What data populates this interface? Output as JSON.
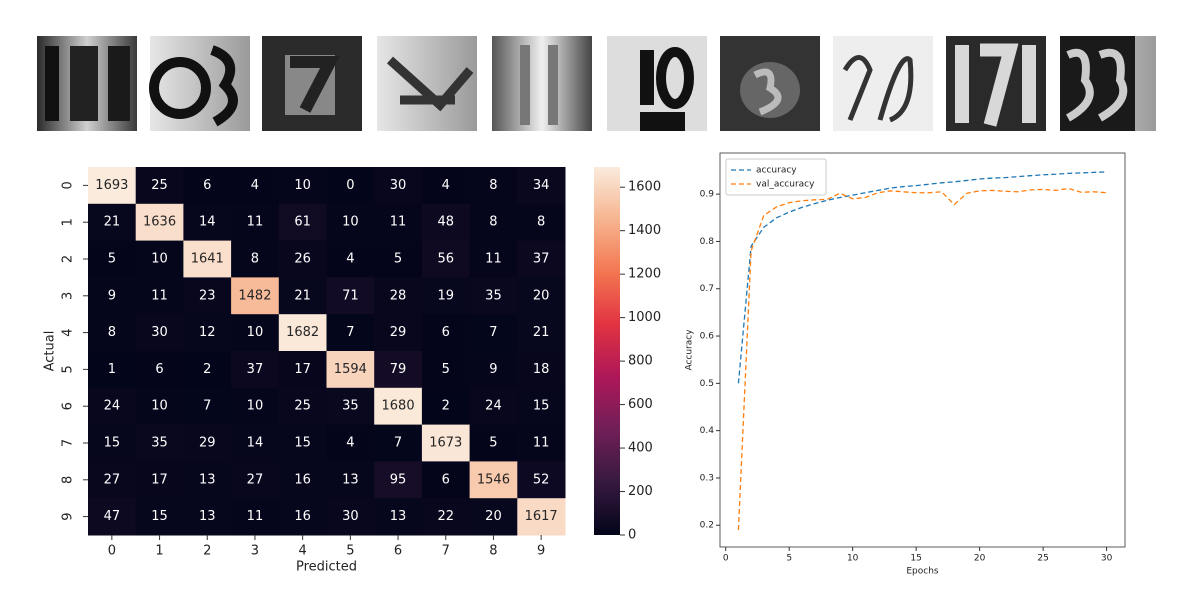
{
  "chart_data": [
    {
      "type": "heatmap",
      "x_label": "Predicted",
      "y_label": "Actual",
      "x_categories": [
        "0",
        "1",
        "2",
        "3",
        "4",
        "5",
        "6",
        "7",
        "8",
        "9"
      ],
      "y_categories": [
        "0",
        "1",
        "2",
        "3",
        "4",
        "5",
        "6",
        "7",
        "8",
        "9"
      ],
      "values": [
        [
          1693,
          25,
          6,
          4,
          10,
          0,
          30,
          4,
          8,
          34
        ],
        [
          21,
          1636,
          14,
          11,
          61,
          10,
          11,
          48,
          8,
          8
        ],
        [
          5,
          10,
          1641,
          8,
          26,
          4,
          5,
          56,
          11,
          37
        ],
        [
          9,
          11,
          23,
          1482,
          21,
          71,
          28,
          19,
          35,
          20
        ],
        [
          8,
          30,
          12,
          10,
          1682,
          7,
          29,
          6,
          7,
          21
        ],
        [
          1,
          6,
          2,
          37,
          17,
          1594,
          79,
          5,
          9,
          18
        ],
        [
          24,
          10,
          7,
          10,
          25,
          35,
          1680,
          2,
          24,
          15
        ],
        [
          15,
          35,
          29,
          14,
          15,
          4,
          7,
          1673,
          5,
          11
        ],
        [
          27,
          17,
          13,
          27,
          16,
          13,
          95,
          6,
          1546,
          52
        ],
        [
          47,
          15,
          13,
          11,
          16,
          30,
          13,
          22,
          20,
          1617
        ]
      ],
      "colorbar_lim": [
        0,
        1693
      ],
      "colorbar_ticks": [
        0,
        200,
        400,
        600,
        800,
        1000,
        1200,
        1400,
        1600
      ],
      "colormap": [
        "#03051a",
        "#36193e",
        "#701f57",
        "#ad1759",
        "#e13342",
        "#f37651",
        "#f6b48f",
        "#faebdd"
      ]
    },
    {
      "type": "line",
      "x_label": "Epochs",
      "y_label": "Accuracy",
      "x": [
        1,
        2,
        3,
        4,
        5,
        6,
        7,
        8,
        9,
        10,
        11,
        12,
        13,
        14,
        15,
        16,
        17,
        18,
        19,
        20,
        21,
        22,
        23,
        24,
        25,
        26,
        27,
        28,
        29,
        30
      ],
      "series": [
        {
          "name": "accuracy",
          "color": "#1f77b4",
          "values": [
            0.5,
            0.79,
            0.83,
            0.85,
            0.862,
            0.872,
            0.88,
            0.887,
            0.893,
            0.898,
            0.903,
            0.908,
            0.913,
            0.916,
            0.918,
            0.921,
            0.924,
            0.926,
            0.929,
            0.932,
            0.934,
            0.935,
            0.937,
            0.939,
            0.941,
            0.942,
            0.944,
            0.945,
            0.946,
            0.947
          ]
        },
        {
          "name": "val_accuracy",
          "color": "#ff7f0e",
          "values": [
            0.19,
            0.78,
            0.855,
            0.873,
            0.882,
            0.886,
            0.888,
            0.889,
            0.902,
            0.89,
            0.893,
            0.903,
            0.907,
            0.905,
            0.903,
            0.903,
            0.905,
            0.878,
            0.902,
            0.907,
            0.908,
            0.906,
            0.905,
            0.909,
            0.91,
            0.908,
            0.912,
            0.904,
            0.905,
            0.903
          ]
        }
      ],
      "xlim": [
        -0.45,
        31.45
      ],
      "ylim": [
        0.154,
        0.987
      ],
      "xticks": [
        0,
        5,
        10,
        15,
        20,
        25,
        30
      ],
      "yticks": [
        0.2,
        0.3,
        0.4,
        0.5,
        0.6,
        0.7,
        0.8,
        0.9
      ],
      "legend": "upper left",
      "line_style": "dashed"
    }
  ]
}
